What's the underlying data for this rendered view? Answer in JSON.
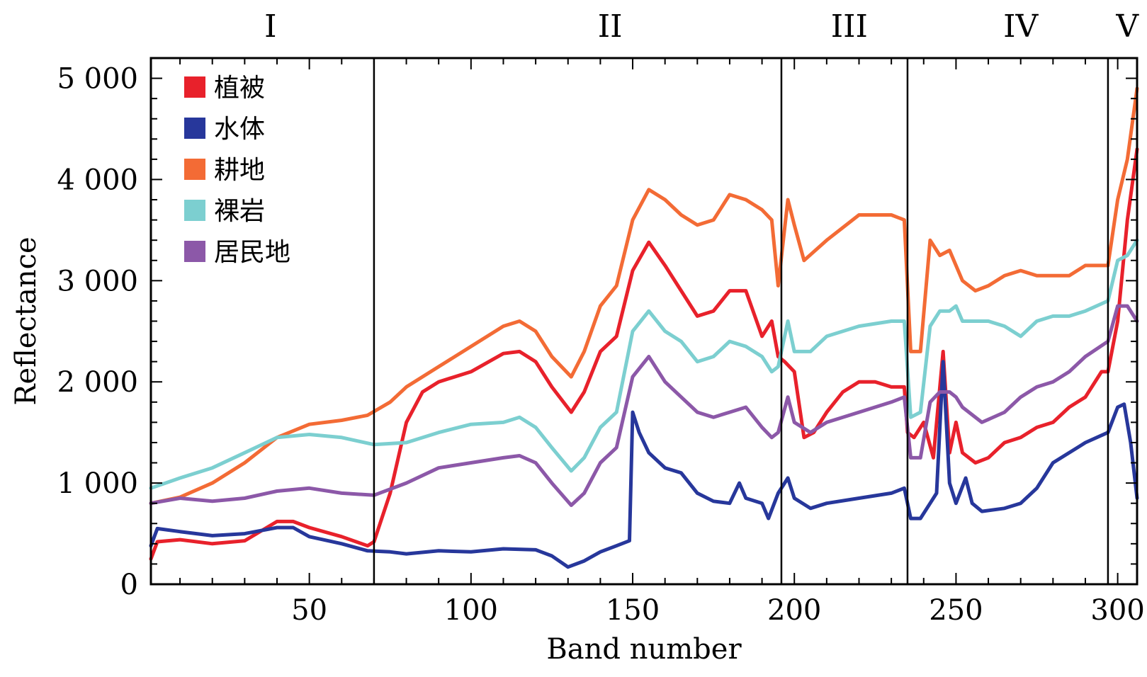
{
  "chart_data": {
    "type": "line",
    "xlabel": "Band number",
    "ylabel": "Reflectance",
    "xlim": [
      1,
      306
    ],
    "ylim": [
      0,
      5200
    ],
    "x_ticks": [
      50,
      100,
      150,
      200,
      250,
      300
    ],
    "x_tick_labels": [
      "50",
      "100",
      "150",
      "200",
      "250",
      "300"
    ],
    "y_ticks": [
      0,
      1000,
      2000,
      3000,
      4000,
      5000
    ],
    "y_tick_labels": [
      "0",
      "1 000",
      "2 000",
      "3 000",
      "4 000",
      "5 000"
    ],
    "region_boundaries": [
      70,
      196,
      235,
      297
    ],
    "regions": [
      {
        "label": "I",
        "x": 38
      },
      {
        "label": "II",
        "x": 143
      },
      {
        "label": "III",
        "x": 217
      },
      {
        "label": "IV",
        "x": 270
      },
      {
        "label": "V",
        "x": 303
      }
    ],
    "legend_position": "top-left",
    "grid": false,
    "series": [
      {
        "name": "植被",
        "color": "#e8212b",
        "points": [
          [
            1,
            250
          ],
          [
            3,
            420
          ],
          [
            10,
            440
          ],
          [
            20,
            400
          ],
          [
            30,
            430
          ],
          [
            40,
            620
          ],
          [
            45,
            620
          ],
          [
            50,
            560
          ],
          [
            60,
            470
          ],
          [
            68,
            380
          ],
          [
            70,
            420
          ],
          [
            75,
            900
          ],
          [
            80,
            1600
          ],
          [
            85,
            1900
          ],
          [
            90,
            2000
          ],
          [
            100,
            2100
          ],
          [
            110,
            2280
          ],
          [
            115,
            2300
          ],
          [
            120,
            2200
          ],
          [
            125,
            1950
          ],
          [
            131,
            1700
          ],
          [
            135,
            1900
          ],
          [
            140,
            2300
          ],
          [
            145,
            2450
          ],
          [
            150,
            3100
          ],
          [
            155,
            3380
          ],
          [
            160,
            3150
          ],
          [
            165,
            2900
          ],
          [
            170,
            2650
          ],
          [
            175,
            2700
          ],
          [
            180,
            2900
          ],
          [
            185,
            2900
          ],
          [
            190,
            2450
          ],
          [
            193,
            2600
          ],
          [
            195,
            2250
          ],
          [
            197,
            2200
          ],
          [
            200,
            2100
          ],
          [
            203,
            1450
          ],
          [
            206,
            1500
          ],
          [
            210,
            1700
          ],
          [
            215,
            1900
          ],
          [
            220,
            2000
          ],
          [
            225,
            2000
          ],
          [
            230,
            1950
          ],
          [
            234,
            1950
          ],
          [
            235,
            1500
          ],
          [
            237,
            1450
          ],
          [
            240,
            1600
          ],
          [
            243,
            1250
          ],
          [
            246,
            2300
          ],
          [
            248,
            1300
          ],
          [
            250,
            1600
          ],
          [
            252,
            1300
          ],
          [
            256,
            1200
          ],
          [
            260,
            1250
          ],
          [
            265,
            1400
          ],
          [
            270,
            1450
          ],
          [
            275,
            1550
          ],
          [
            280,
            1600
          ],
          [
            285,
            1750
          ],
          [
            290,
            1850
          ],
          [
            295,
            2100
          ],
          [
            297,
            2100
          ],
          [
            300,
            2600
          ],
          [
            303,
            3600
          ],
          [
            306,
            4300
          ]
        ]
      },
      {
        "name": "水体",
        "color": "#27379b",
        "points": [
          [
            1,
            380
          ],
          [
            3,
            550
          ],
          [
            10,
            520
          ],
          [
            20,
            480
          ],
          [
            30,
            500
          ],
          [
            40,
            560
          ],
          [
            45,
            560
          ],
          [
            50,
            470
          ],
          [
            60,
            400
          ],
          [
            68,
            330
          ],
          [
            75,
            320
          ],
          [
            80,
            300
          ],
          [
            90,
            330
          ],
          [
            100,
            320
          ],
          [
            110,
            350
          ],
          [
            120,
            340
          ],
          [
            125,
            280
          ],
          [
            130,
            170
          ],
          [
            135,
            230
          ],
          [
            140,
            320
          ],
          [
            145,
            380
          ],
          [
            149,
            430
          ],
          [
            150,
            1700
          ],
          [
            152,
            1500
          ],
          [
            155,
            1300
          ],
          [
            160,
            1150
          ],
          [
            165,
            1100
          ],
          [
            170,
            900
          ],
          [
            175,
            820
          ],
          [
            180,
            800
          ],
          [
            183,
            1000
          ],
          [
            185,
            850
          ],
          [
            190,
            800
          ],
          [
            192,
            650
          ],
          [
            195,
            900
          ],
          [
            198,
            1050
          ],
          [
            200,
            850
          ],
          [
            205,
            750
          ],
          [
            210,
            800
          ],
          [
            220,
            850
          ],
          [
            230,
            900
          ],
          [
            234,
            950
          ],
          [
            236,
            650
          ],
          [
            239,
            650
          ],
          [
            242,
            800
          ],
          [
            244,
            900
          ],
          [
            246,
            2200
          ],
          [
            248,
            1000
          ],
          [
            250,
            800
          ],
          [
            253,
            1050
          ],
          [
            255,
            800
          ],
          [
            258,
            720
          ],
          [
            265,
            750
          ],
          [
            270,
            800
          ],
          [
            275,
            950
          ],
          [
            280,
            1200
          ],
          [
            285,
            1300
          ],
          [
            290,
            1400
          ],
          [
            297,
            1500
          ],
          [
            300,
            1750
          ],
          [
            302,
            1780
          ],
          [
            304,
            1400
          ],
          [
            306,
            850
          ]
        ]
      },
      {
        "name": "耕地",
        "color": "#f36b35",
        "points": [
          [
            1,
            800
          ],
          [
            10,
            860
          ],
          [
            20,
            1000
          ],
          [
            30,
            1200
          ],
          [
            40,
            1450
          ],
          [
            50,
            1580
          ],
          [
            60,
            1620
          ],
          [
            68,
            1670
          ],
          [
            75,
            1800
          ],
          [
            80,
            1950
          ],
          [
            90,
            2150
          ],
          [
            100,
            2350
          ],
          [
            110,
            2550
          ],
          [
            115,
            2600
          ],
          [
            120,
            2500
          ],
          [
            125,
            2250
          ],
          [
            131,
            2050
          ],
          [
            135,
            2300
          ],
          [
            140,
            2750
          ],
          [
            145,
            2950
          ],
          [
            150,
            3600
          ],
          [
            155,
            3900
          ],
          [
            160,
            3800
          ],
          [
            165,
            3650
          ],
          [
            170,
            3550
          ],
          [
            175,
            3600
          ],
          [
            180,
            3850
          ],
          [
            185,
            3800
          ],
          [
            190,
            3700
          ],
          [
            193,
            3600
          ],
          [
            195,
            2950
          ],
          [
            198,
            3800
          ],
          [
            200,
            3550
          ],
          [
            203,
            3200
          ],
          [
            210,
            3400
          ],
          [
            220,
            3650
          ],
          [
            230,
            3650
          ],
          [
            234,
            3600
          ],
          [
            236,
            2300
          ],
          [
            239,
            2300
          ],
          [
            242,
            3400
          ],
          [
            245,
            3250
          ],
          [
            248,
            3300
          ],
          [
            252,
            3000
          ],
          [
            256,
            2900
          ],
          [
            260,
            2950
          ],
          [
            265,
            3050
          ],
          [
            270,
            3100
          ],
          [
            275,
            3050
          ],
          [
            280,
            3050
          ],
          [
            285,
            3050
          ],
          [
            290,
            3150
          ],
          [
            297,
            3150
          ],
          [
            300,
            3800
          ],
          [
            303,
            4200
          ],
          [
            306,
            4900
          ]
        ]
      },
      {
        "name": "裸岩",
        "color": "#7ccfd0",
        "points": [
          [
            1,
            950
          ],
          [
            10,
            1050
          ],
          [
            20,
            1150
          ],
          [
            30,
            1300
          ],
          [
            40,
            1450
          ],
          [
            50,
            1480
          ],
          [
            60,
            1450
          ],
          [
            70,
            1380
          ],
          [
            80,
            1400
          ],
          [
            90,
            1500
          ],
          [
            100,
            1580
          ],
          [
            110,
            1600
          ],
          [
            115,
            1650
          ],
          [
            120,
            1550
          ],
          [
            125,
            1350
          ],
          [
            131,
            1120
          ],
          [
            135,
            1250
          ],
          [
            140,
            1550
          ],
          [
            145,
            1700
          ],
          [
            150,
            2500
          ],
          [
            155,
            2700
          ],
          [
            160,
            2500
          ],
          [
            165,
            2400
          ],
          [
            170,
            2200
          ],
          [
            175,
            2250
          ],
          [
            180,
            2400
          ],
          [
            185,
            2350
          ],
          [
            190,
            2250
          ],
          [
            193,
            2100
          ],
          [
            195,
            2150
          ],
          [
            198,
            2600
          ],
          [
            200,
            2300
          ],
          [
            205,
            2300
          ],
          [
            210,
            2450
          ],
          [
            220,
            2550
          ],
          [
            230,
            2600
          ],
          [
            234,
            2600
          ],
          [
            236,
            1650
          ],
          [
            239,
            1700
          ],
          [
            242,
            2550
          ],
          [
            245,
            2700
          ],
          [
            248,
            2700
          ],
          [
            250,
            2750
          ],
          [
            252,
            2600
          ],
          [
            260,
            2600
          ],
          [
            265,
            2550
          ],
          [
            270,
            2450
          ],
          [
            275,
            2600
          ],
          [
            280,
            2650
          ],
          [
            285,
            2650
          ],
          [
            290,
            2700
          ],
          [
            297,
            2800
          ],
          [
            300,
            3200
          ],
          [
            303,
            3250
          ],
          [
            306,
            3400
          ]
        ]
      },
      {
        "name": "居民地",
        "color": "#8c58a8",
        "points": [
          [
            1,
            800
          ],
          [
            10,
            850
          ],
          [
            20,
            820
          ],
          [
            30,
            850
          ],
          [
            40,
            920
          ],
          [
            50,
            950
          ],
          [
            60,
            900
          ],
          [
            70,
            880
          ],
          [
            80,
            1000
          ],
          [
            90,
            1150
          ],
          [
            100,
            1200
          ],
          [
            110,
            1250
          ],
          [
            115,
            1270
          ],
          [
            120,
            1200
          ],
          [
            125,
            1000
          ],
          [
            131,
            780
          ],
          [
            135,
            900
          ],
          [
            140,
            1200
          ],
          [
            145,
            1350
          ],
          [
            150,
            2050
          ],
          [
            155,
            2250
          ],
          [
            160,
            2000
          ],
          [
            165,
            1850
          ],
          [
            170,
            1700
          ],
          [
            175,
            1650
          ],
          [
            180,
            1700
          ],
          [
            185,
            1750
          ],
          [
            190,
            1550
          ],
          [
            193,
            1450
          ],
          [
            195,
            1500
          ],
          [
            198,
            1850
          ],
          [
            200,
            1600
          ],
          [
            205,
            1500
          ],
          [
            210,
            1600
          ],
          [
            220,
            1700
          ],
          [
            230,
            1800
          ],
          [
            234,
            1850
          ],
          [
            236,
            1250
          ],
          [
            239,
            1250
          ],
          [
            242,
            1800
          ],
          [
            245,
            1900
          ],
          [
            248,
            1900
          ],
          [
            250,
            1850
          ],
          [
            252,
            1750
          ],
          [
            258,
            1600
          ],
          [
            265,
            1700
          ],
          [
            270,
            1850
          ],
          [
            275,
            1950
          ],
          [
            280,
            2000
          ],
          [
            285,
            2100
          ],
          [
            290,
            2250
          ],
          [
            297,
            2400
          ],
          [
            300,
            2750
          ],
          [
            303,
            2750
          ],
          [
            306,
            2600
          ]
        ]
      }
    ]
  }
}
